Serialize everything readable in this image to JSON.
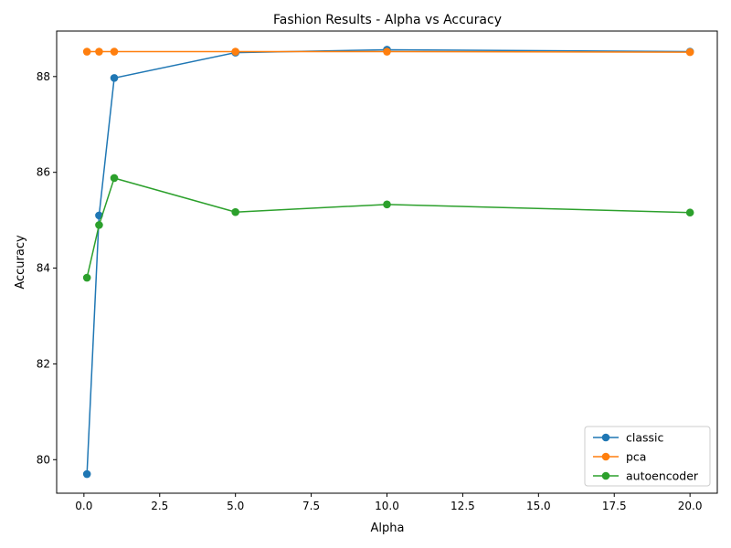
{
  "chart_data": {
    "type": "line",
    "title": "Fashion Results - Alpha vs Accuracy",
    "xlabel": "Alpha",
    "ylabel": "Accuracy",
    "xlim": [
      -0.9,
      20.9
    ],
    "ylim": [
      79.3,
      88.95
    ],
    "xticks": [
      0,
      2.5,
      5,
      7.5,
      10,
      12.5,
      15,
      17.5,
      20
    ],
    "xtick_labels": [
      "0.0",
      "2.5",
      "5.0",
      "7.5",
      "10.0",
      "12.5",
      "15.0",
      "17.5",
      "20.0"
    ],
    "yticks": [
      80,
      82,
      84,
      86,
      88
    ],
    "ytick_labels": [
      "80",
      "82",
      "84",
      "86",
      "88"
    ],
    "grid": false,
    "legend_position": "lower-right",
    "x": [
      0.1,
      0.5,
      1,
      5,
      10,
      20
    ],
    "series": [
      {
        "name": "classic",
        "color": "#1f77b4",
        "values": [
          79.7,
          85.1,
          87.97,
          88.5,
          88.56,
          88.52
        ]
      },
      {
        "name": "pca",
        "color": "#ff7f0e",
        "values": [
          88.52,
          88.52,
          88.52,
          88.52,
          88.52,
          88.51
        ]
      },
      {
        "name": "autoencoder",
        "color": "#2ca02c",
        "values": [
          83.8,
          84.9,
          85.88,
          85.17,
          85.33,
          85.16
        ]
      }
    ]
  }
}
